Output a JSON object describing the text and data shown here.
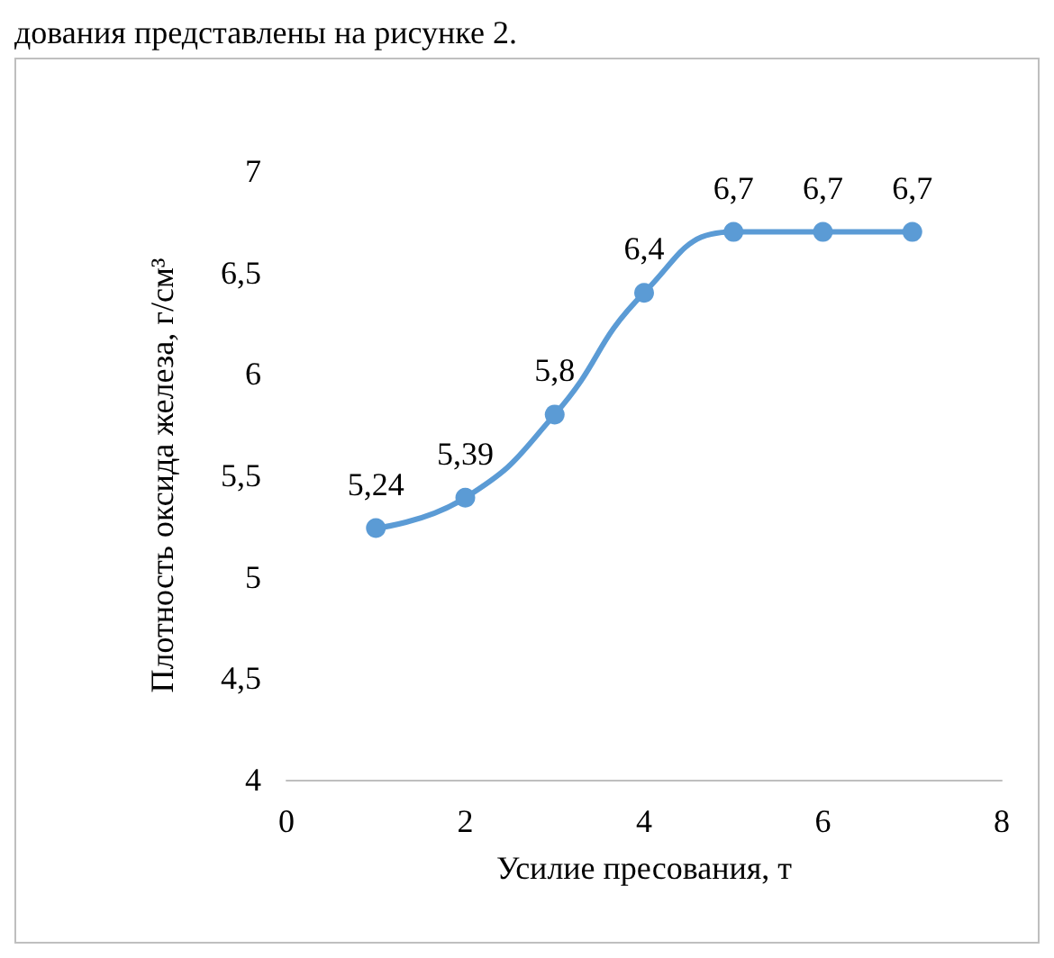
{
  "chart_data": {
    "type": "line",
    "annotations": [
      "дования представлены на рисунке 2."
    ],
    "xlabel": "Усилие пресования, т",
    "ylabel": "Плотность оксида железа, г/см³",
    "x": [
      1,
      2,
      3,
      4,
      5,
      6,
      7
    ],
    "series": [
      {
        "color": "#5b9bd5",
        "values": [
          5.24,
          5.39,
          5.8,
          6.4,
          6.7,
          6.7,
          6.7
        ],
        "value_labels": [
          "5,24",
          "5,39",
          "5,8",
          "6,4",
          "6,7",
          "6,7",
          "6,7"
        ]
      }
    ],
    "xlim": [
      0,
      8
    ],
    "xticks": [
      0,
      2,
      4,
      6,
      8
    ],
    "ylim": [
      4,
      7
    ],
    "yticks": [
      4,
      {
        "value": 4.5,
        "label": "4,5"
      },
      5,
      {
        "value": 5.5,
        "label": "5,5"
      },
      6,
      {
        "value": 6.5,
        "label": "6,5"
      },
      7
    ],
    "grid": false,
    "marker": "circle",
    "line_style": "solid"
  }
}
